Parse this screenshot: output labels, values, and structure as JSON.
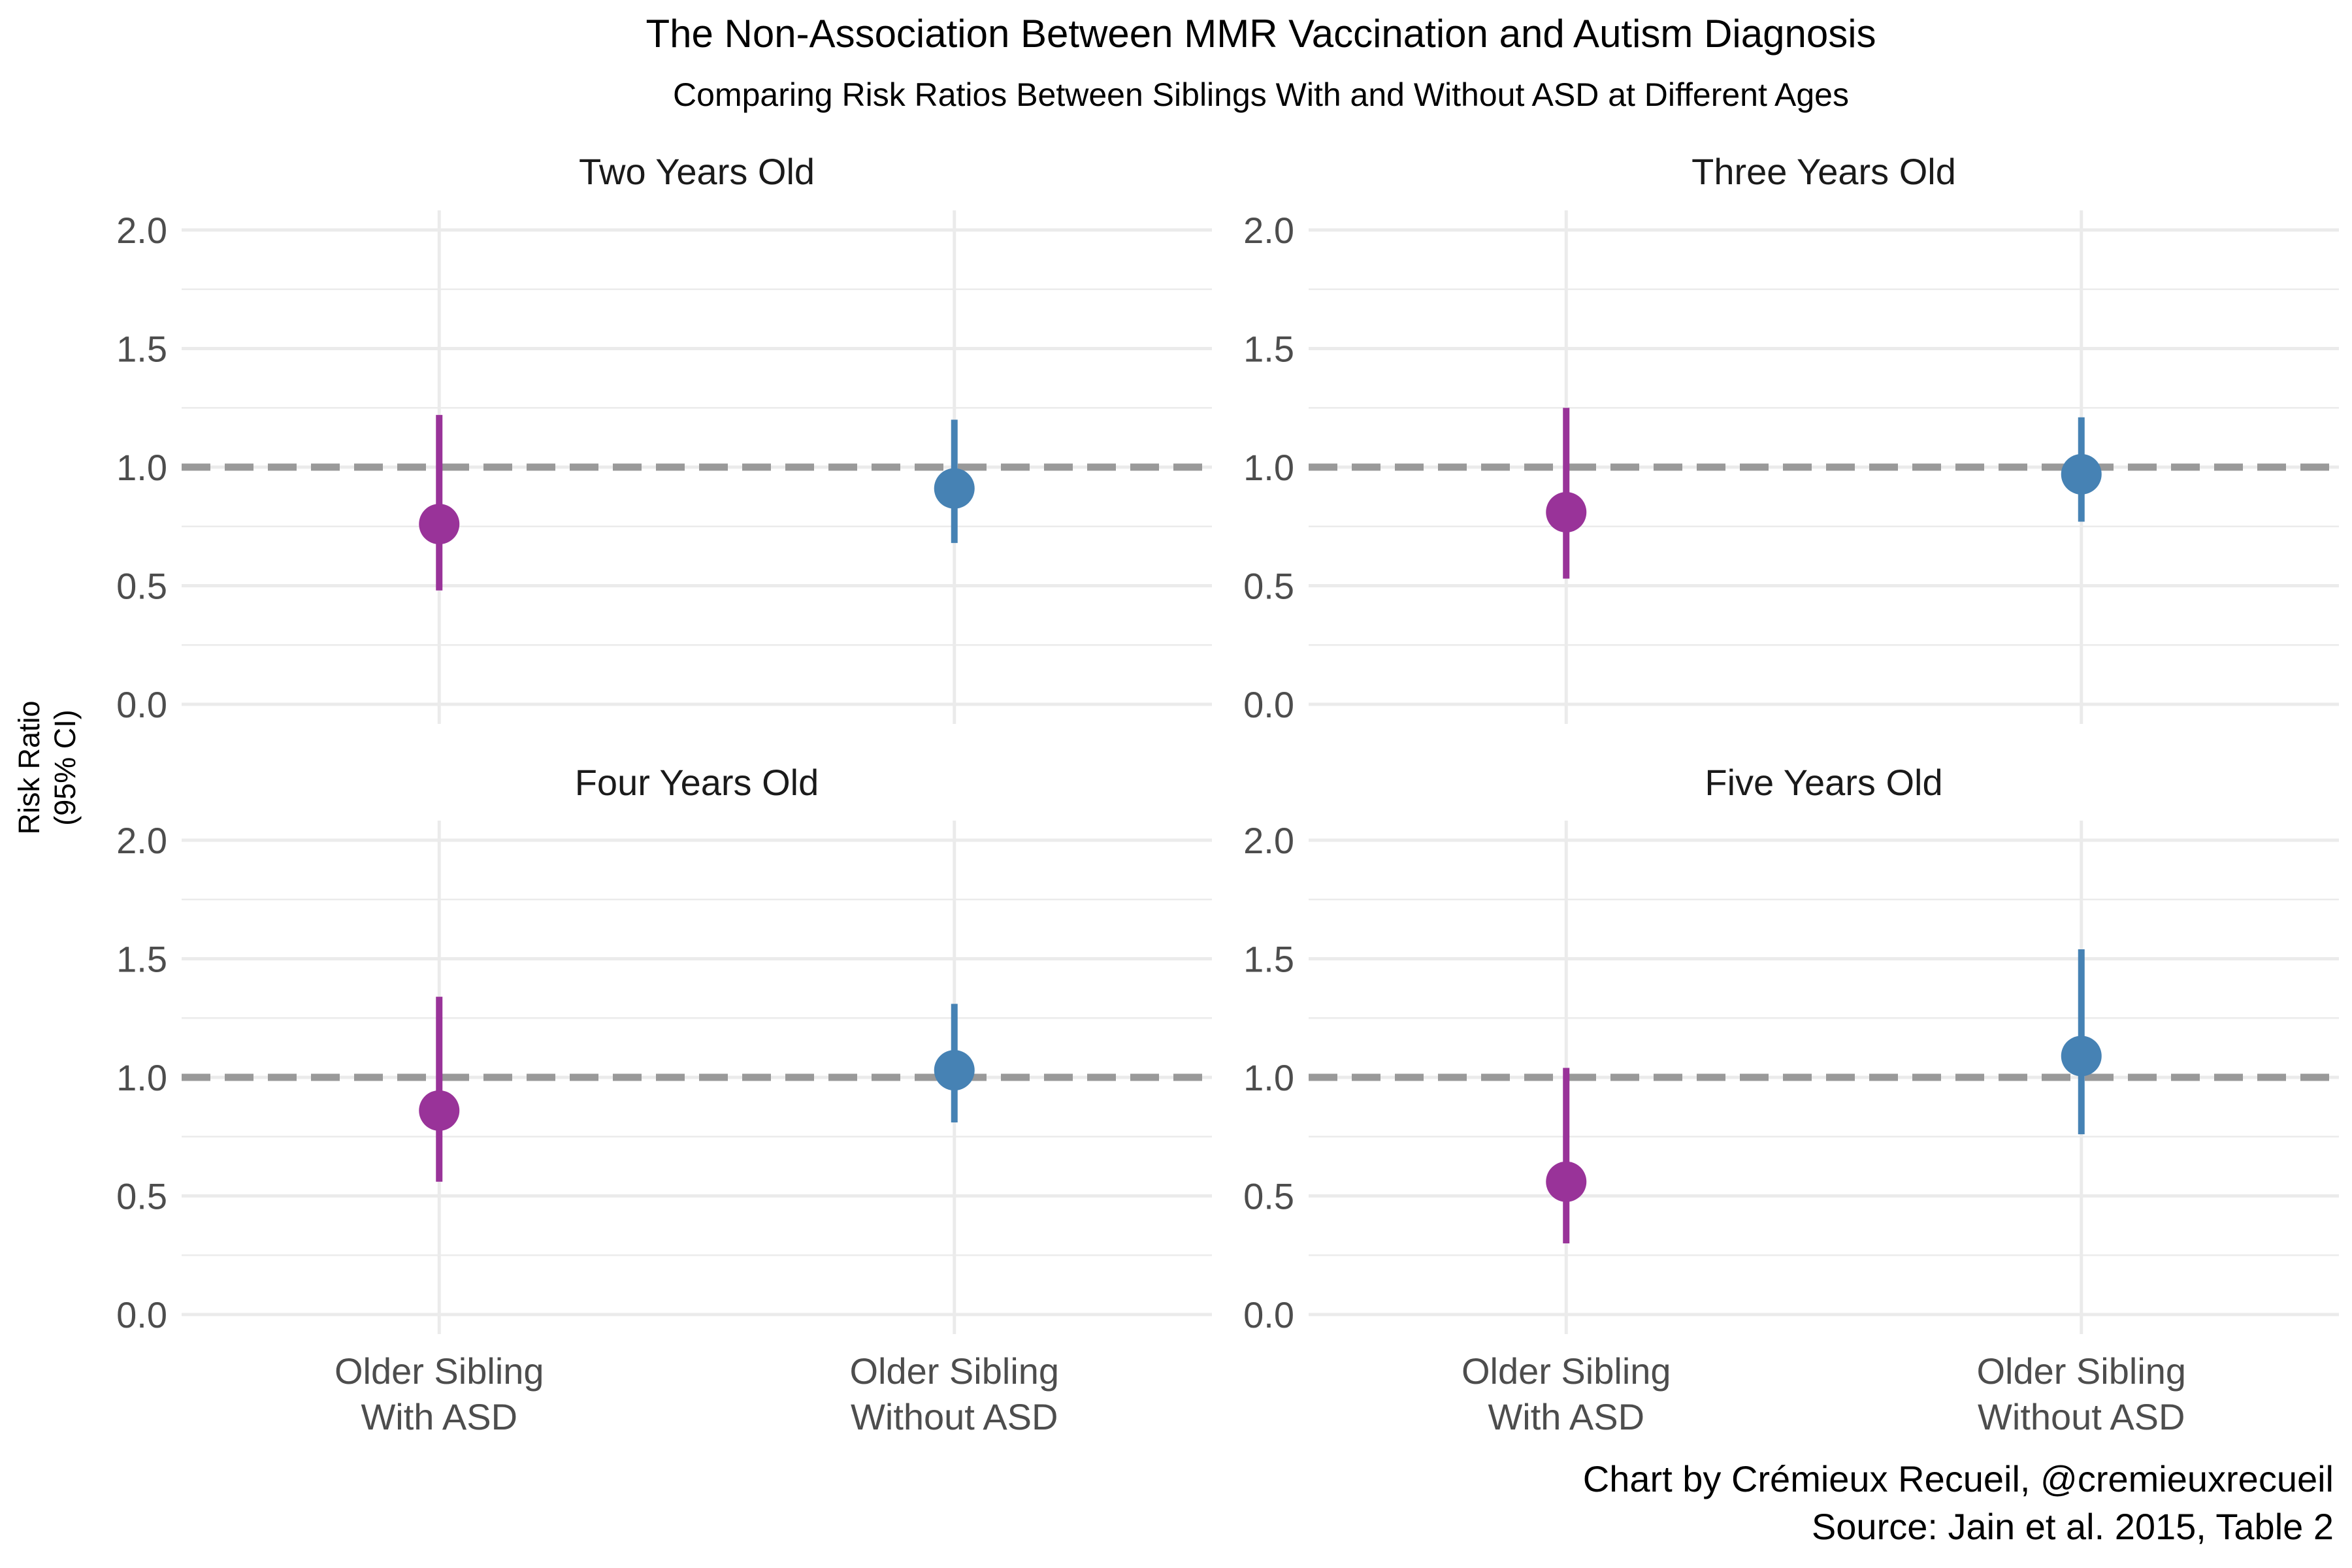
{
  "chart_data": {
    "type": "scatter",
    "title": "The Non-Association Between MMR Vaccination and Autism Diagnosis",
    "subtitle": "Comparing Risk Ratios Between Siblings With and Without ASD at Different Ages",
    "ylabel": [
      "Risk Ratio",
      "(95% CI)"
    ],
    "ylim": [
      0,
      2
    ],
    "y_ticks": [
      "0.0",
      "0.5",
      "1.0",
      "1.5",
      "2.0"
    ],
    "reference_line": 1.0,
    "categories": [
      {
        "lines": [
          "Older Sibling",
          "With ASD"
        ],
        "color": "#993399"
      },
      {
        "lines": [
          "Older Sibling",
          "Without ASD"
        ],
        "color": "#4682B4"
      }
    ],
    "panels": [
      {
        "title": "Two Years Old",
        "points": [
          {
            "category": 0,
            "estimate": 0.76,
            "lower": 0.48,
            "upper": 1.22
          },
          {
            "category": 1,
            "estimate": 0.91,
            "lower": 0.68,
            "upper": 1.2
          }
        ]
      },
      {
        "title": "Three Years Old",
        "points": [
          {
            "category": 0,
            "estimate": 0.81,
            "lower": 0.53,
            "upper": 1.25
          },
          {
            "category": 1,
            "estimate": 0.97,
            "lower": 0.77,
            "upper": 1.21
          }
        ]
      },
      {
        "title": "Four Years Old",
        "points": [
          {
            "category": 0,
            "estimate": 0.86,
            "lower": 0.56,
            "upper": 1.34
          },
          {
            "category": 1,
            "estimate": 1.03,
            "lower": 0.81,
            "upper": 1.31
          }
        ]
      },
      {
        "title": "Five Years Old",
        "points": [
          {
            "category": 0,
            "estimate": 0.56,
            "lower": 0.3,
            "upper": 1.04
          },
          {
            "category": 1,
            "estimate": 1.09,
            "lower": 0.76,
            "upper": 1.54
          }
        ]
      }
    ],
    "grid": true,
    "legend": "none"
  },
  "caption": {
    "line1": "Chart by Crémieux Recueil, @cremieuxrecueil",
    "line2": "Source: Jain et al. 2015, Table 2"
  }
}
